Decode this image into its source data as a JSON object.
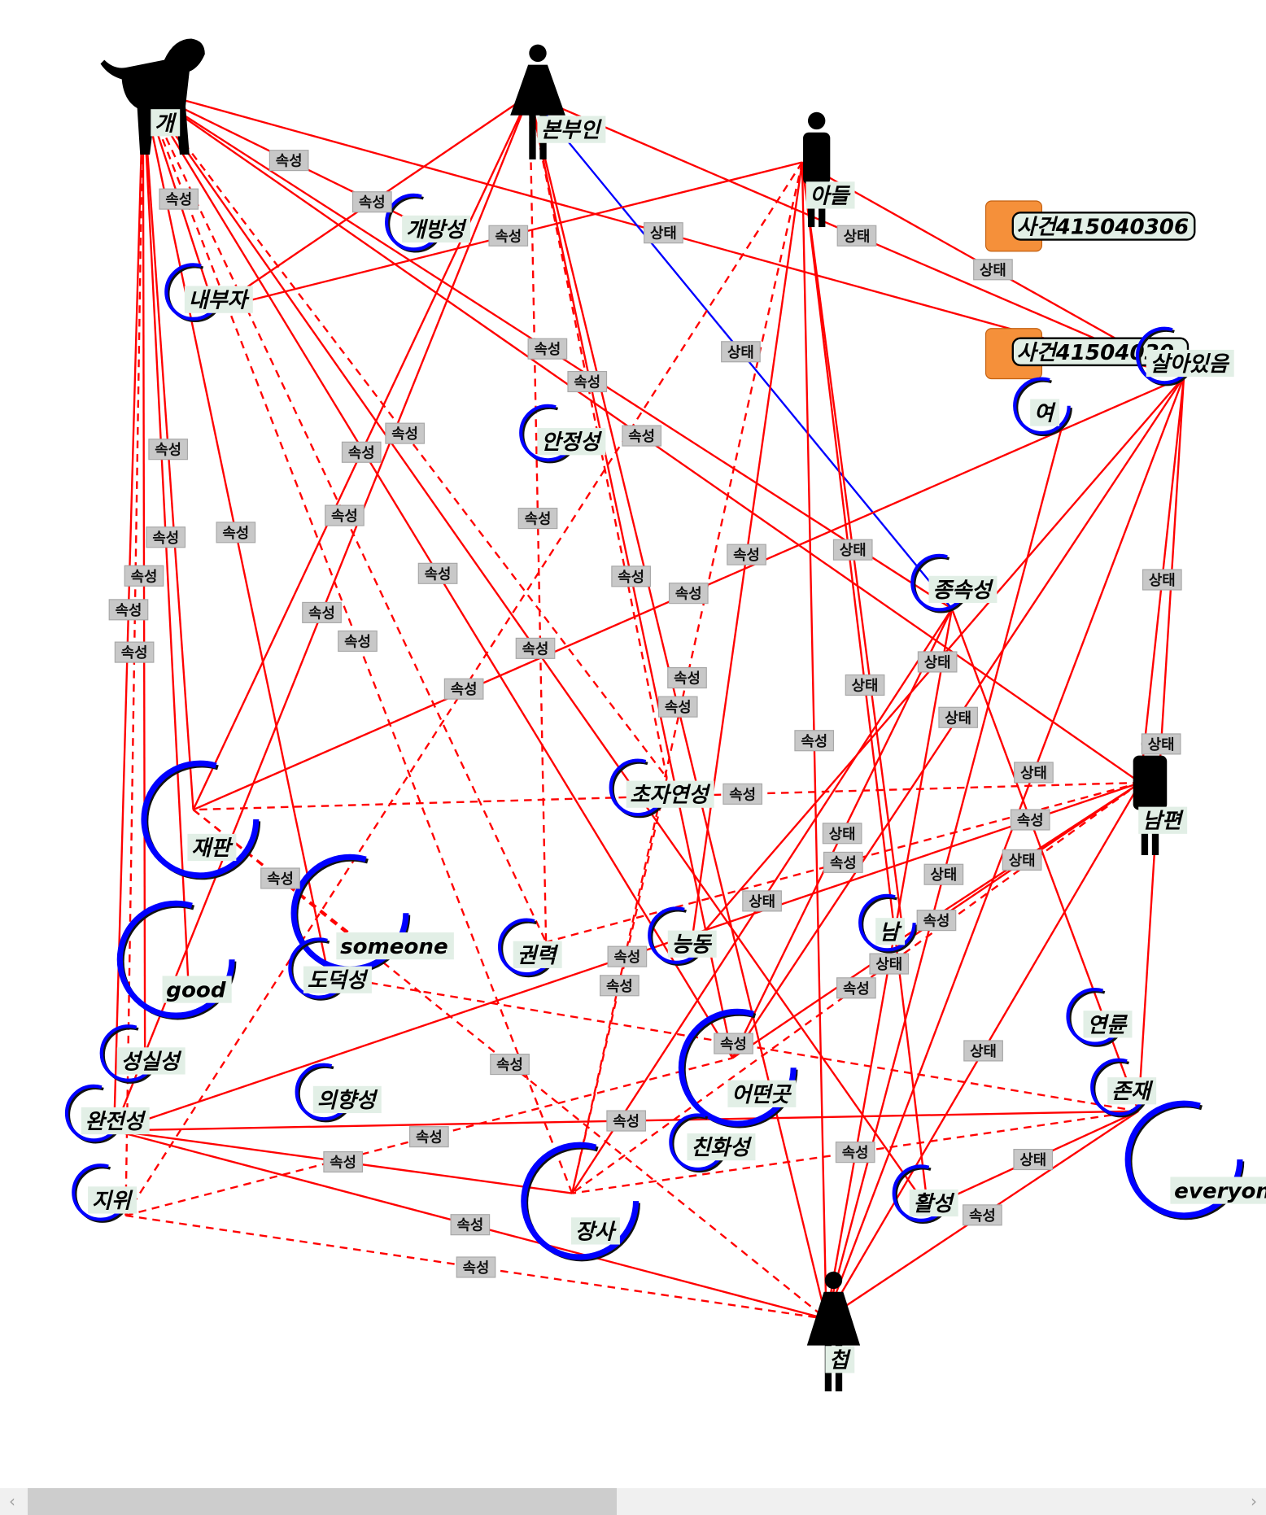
{
  "colors": {
    "edge": "#ff0000",
    "edge_highlight": "#0000ff",
    "ring": "#0000ff",
    "label_bg": "#e2efe6",
    "edge_label_bg": "#c8c8c8",
    "event_box": "#f5903a"
  },
  "nodes": [
    {
      "id": "dog",
      "label": "개",
      "kind": "dog-icon"
    },
    {
      "id": "wife",
      "label": "본부인",
      "kind": "woman-icon"
    },
    {
      "id": "son",
      "label": "아들",
      "kind": "boy-icon"
    },
    {
      "id": "ev1",
      "label": "사건415040306",
      "kind": "event-icon"
    },
    {
      "id": "ev2",
      "label": "사건41504030.",
      "kind": "event-icon"
    },
    {
      "id": "alive",
      "label": "살아있음",
      "kind": "concept"
    },
    {
      "id": "female",
      "label": "여",
      "kind": "concept"
    },
    {
      "id": "open",
      "label": "개방성",
      "kind": "concept"
    },
    {
      "id": "insider",
      "label": "내부자",
      "kind": "concept"
    },
    {
      "id": "stable",
      "label": "안정성",
      "kind": "concept"
    },
    {
      "id": "depend",
      "label": "종속성",
      "kind": "concept"
    },
    {
      "id": "husband",
      "label": "남편",
      "kind": "man-icon"
    },
    {
      "id": "trial",
      "label": "재판",
      "kind": "concept-large"
    },
    {
      "id": "someone",
      "label": "someone",
      "kind": "concept-large"
    },
    {
      "id": "good",
      "label": "good",
      "kind": "concept-large"
    },
    {
      "id": "moral",
      "label": "도덕성",
      "kind": "concept"
    },
    {
      "id": "power",
      "label": "권력",
      "kind": "concept"
    },
    {
      "id": "super",
      "label": "초자연성",
      "kind": "concept"
    },
    {
      "id": "active2",
      "label": "능동",
      "kind": "concept"
    },
    {
      "id": "male",
      "label": "남",
      "kind": "concept"
    },
    {
      "id": "sincere",
      "label": "성실성",
      "kind": "concept"
    },
    {
      "id": "complete",
      "label": "완전성",
      "kind": "concept"
    },
    {
      "id": "intent",
      "label": "의향성",
      "kind": "concept"
    },
    {
      "id": "status",
      "label": "지위",
      "kind": "concept"
    },
    {
      "id": "trade",
      "label": "장사",
      "kind": "concept-large"
    },
    {
      "id": "place",
      "label": "어떤곳",
      "kind": "concept-large"
    },
    {
      "id": "affinity",
      "label": "친화성",
      "kind": "concept"
    },
    {
      "id": "activity",
      "label": "활성",
      "kind": "concept"
    },
    {
      "id": "age",
      "label": "연륜",
      "kind": "concept"
    },
    {
      "id": "exist",
      "label": "존재",
      "kind": "concept"
    },
    {
      "id": "everyone",
      "label": "everyone",
      "kind": "concept-large"
    },
    {
      "id": "concubine",
      "label": "첩",
      "kind": "woman-icon"
    }
  ],
  "edges": [
    [
      "dog",
      "insider",
      "속성",
      "solid"
    ],
    [
      "dog",
      "open",
      "속성",
      "solid"
    ],
    [
      "dog",
      "trial",
      "속성",
      "solid"
    ],
    [
      "dog",
      "good",
      "속성",
      "solid"
    ],
    [
      "dog",
      "complete",
      "속성",
      "solid"
    ],
    [
      "dog",
      "status",
      "속성",
      "dashed"
    ],
    [
      "dog",
      "sincere",
      "속성",
      "solid"
    ],
    [
      "dog",
      "moral",
      "속성",
      "solid"
    ],
    [
      "dog",
      "place",
      "속성",
      "solid"
    ],
    [
      "dog",
      "trade",
      "속성",
      "dashed"
    ],
    [
      "dog",
      "activity",
      "속성",
      "solid"
    ],
    [
      "dog",
      "depend",
      "속성",
      "solid"
    ],
    [
      "dog",
      "husband",
      "속성",
      "solid"
    ],
    [
      "dog",
      "alive",
      "상태",
      "solid"
    ],
    [
      "dog",
      "power",
      "속성",
      "dashed"
    ],
    [
      "dog",
      "super",
      "속성",
      "dashed"
    ],
    [
      "wife",
      "insider",
      "속성",
      "solid"
    ],
    [
      "wife",
      "complete",
      "속성",
      "solid"
    ],
    [
      "wife",
      "depend",
      "상태",
      "highlight"
    ],
    [
      "wife",
      "power",
      "속성",
      "dashed"
    ],
    [
      "wife",
      "place",
      "속성",
      "solid"
    ],
    [
      "wife",
      "concubine",
      "속성",
      "solid"
    ],
    [
      "wife",
      "alive",
      "상태",
      "solid"
    ],
    [
      "wife",
      "trial",
      "속성",
      "solid"
    ],
    [
      "wife",
      "super",
      "속성",
      "dashed"
    ],
    [
      "son",
      "insider",
      "속성",
      "solid"
    ],
    [
      "son",
      "male",
      "상태",
      "solid"
    ],
    [
      "son",
      "concubine",
      "속성",
      "solid"
    ],
    [
      "son",
      "trade",
      "속성",
      "dashed"
    ],
    [
      "son",
      "alive",
      "상태",
      "solid"
    ],
    [
      "son",
      "activity",
      "상태",
      "solid"
    ],
    [
      "son",
      "active2",
      "속성",
      "solid"
    ],
    [
      "son",
      "status",
      "속성",
      "dashed"
    ],
    [
      "husband",
      "trial",
      "속성",
      "dashed"
    ],
    [
      "husband",
      "complete",
      "속성",
      "solid"
    ],
    [
      "husband",
      "male",
      "상태",
      "solid"
    ],
    [
      "husband",
      "concubine",
      "상태",
      "solid"
    ],
    [
      "husband",
      "place",
      "속성",
      "solid"
    ],
    [
      "husband",
      "power",
      "속성",
      "dashed"
    ],
    [
      "husband",
      "alive",
      "상태",
      "solid"
    ],
    [
      "husband",
      "trade",
      "속성",
      "dashed"
    ],
    [
      "alive",
      "trial",
      "속성",
      "solid"
    ],
    [
      "alive",
      "place",
      "상태",
      "solid"
    ],
    [
      "alive",
      "concubine",
      "상태",
      "solid"
    ],
    [
      "alive",
      "exist",
      "상태",
      "solid"
    ],
    [
      "alive",
      "active2",
      "상태",
      "solid"
    ],
    [
      "female",
      "concubine",
      "상태",
      "solid"
    ],
    [
      "depend",
      "place",
      "상태",
      "solid"
    ],
    [
      "depend",
      "trade",
      "상태",
      "solid"
    ],
    [
      "depend",
      "exist",
      "속성",
      "solid"
    ],
    [
      "depend",
      "concubine",
      "상태",
      "solid"
    ],
    [
      "trial",
      "someone",
      "속성",
      "dashed"
    ],
    [
      "trial",
      "concubine",
      "속성",
      "dashed"
    ],
    [
      "complete",
      "concubine",
      "속성",
      "solid"
    ],
    [
      "complete",
      "trade",
      "속성",
      "solid"
    ],
    [
      "complete",
      "exist",
      "속성",
      "solid"
    ],
    [
      "status",
      "concubine",
      "속성",
      "dashed"
    ],
    [
      "status",
      "place",
      "속성",
      "dashed"
    ],
    [
      "exist",
      "concubine",
      "속성",
      "solid"
    ],
    [
      "exist",
      "trade",
      "속성",
      "dashed"
    ],
    [
      "exist",
      "moral",
      "속성",
      "dashed"
    ],
    [
      "exist",
      "activity",
      "상태",
      "solid"
    ],
    [
      "trade",
      "super",
      "속성",
      "dashed"
    ]
  ],
  "scrollbar": {
    "left_arrow": "‹",
    "right_arrow": "›",
    "position": 0
  }
}
